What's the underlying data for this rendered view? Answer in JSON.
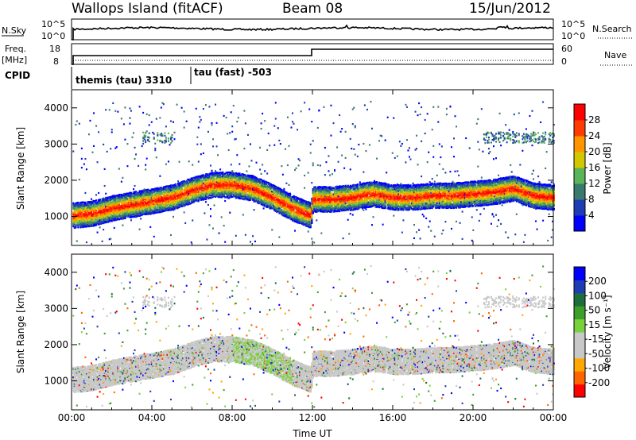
{
  "header": {
    "station": "Wallops Island (fitACF)",
    "beam": "Beam 08",
    "date": "15/Jun/2012"
  },
  "labels": {
    "nsky": "N.Sky",
    "nsearch": "N.Search",
    "freq_line1": "Freq.",
    "freq_line2": "[MHz]",
    "nave": "Nave",
    "cpid": "CPID",
    "cpid_prog1": "themis (tau) 3310",
    "cpid_prog2": "tau (fast) -503",
    "nsky_ticks": [
      "10^5",
      "10^0"
    ],
    "nsearch_ticks": [
      "10^5",
      "10^0"
    ],
    "freq_ticks": [
      "18",
      "8"
    ],
    "nave_ticks": [
      "60",
      "0"
    ]
  },
  "colors": {
    "frame": "#000000",
    "power_scale": [
      "#0000ff",
      "#1e3cb4",
      "#3a7a6e",
      "#5ab45a",
      "#d2c800",
      "#ff9600",
      "#ff3c00",
      "#ff0000"
    ],
    "velocity_scale": [
      "#ff0000",
      "#ff6400",
      "#ffa800",
      "#c8c8c8",
      "#c8c8c8",
      "#78d23c",
      "#3ca028",
      "#1e6e3c",
      "#1e3cb4",
      "#0000ff"
    ]
  },
  "chart_data": [
    {
      "type": "heatmap",
      "title": "",
      "xlabel": "",
      "ylabel": "Slant Range [km]",
      "xlim": [
        0,
        24
      ],
      "ylim": [
        200,
        4500
      ],
      "x_ticks": [
        "00:00",
        "04:00",
        "08:00",
        "12:00",
        "16:00",
        "20:00",
        "00:00"
      ],
      "y_ticks": [
        "1000",
        "2000",
        "3000",
        "4000"
      ],
      "colorbar_label": "Power [dB]",
      "colorbar_ticks": [
        "4",
        "8",
        "12",
        "16",
        "20",
        "24",
        "28"
      ],
      "echo_band_center_km": [
        [
          0,
          1050
        ],
        [
          1,
          1100
        ],
        [
          2,
          1250
        ],
        [
          3,
          1350
        ],
        [
          4,
          1450
        ],
        [
          5,
          1550
        ],
        [
          6,
          1750
        ],
        [
          7,
          1900
        ],
        [
          8,
          1900
        ],
        [
          9,
          1800
        ],
        [
          10,
          1550
        ],
        [
          11,
          1250
        ],
        [
          11.9,
          1050
        ],
        [
          12,
          1500
        ],
        [
          13,
          1500
        ],
        [
          14,
          1550
        ],
        [
          15,
          1650
        ],
        [
          16,
          1550
        ],
        [
          17,
          1550
        ],
        [
          18,
          1600
        ],
        [
          19,
          1600
        ],
        [
          20,
          1650
        ],
        [
          21,
          1700
        ],
        [
          22,
          1800
        ],
        [
          23,
          1600
        ],
        [
          24,
          1550
        ]
      ]
    },
    {
      "type": "heatmap",
      "title": "",
      "xlabel": "Time UT",
      "ylabel": "Slant Range [km]",
      "xlim": [
        0,
        24
      ],
      "ylim": [
        200,
        4500
      ],
      "x_ticks": [
        "00:00",
        "04:00",
        "08:00",
        "12:00",
        "16:00",
        "20:00",
        "00:00"
      ],
      "y_ticks": [
        "1000",
        "2000",
        "3000",
        "4000"
      ],
      "colorbar_label": "Velocity [m s⁻¹]",
      "colorbar_ticks": [
        "200",
        "100",
        "50",
        "15",
        "-15",
        "-50",
        "-100",
        "-200"
      ]
    }
  ]
}
